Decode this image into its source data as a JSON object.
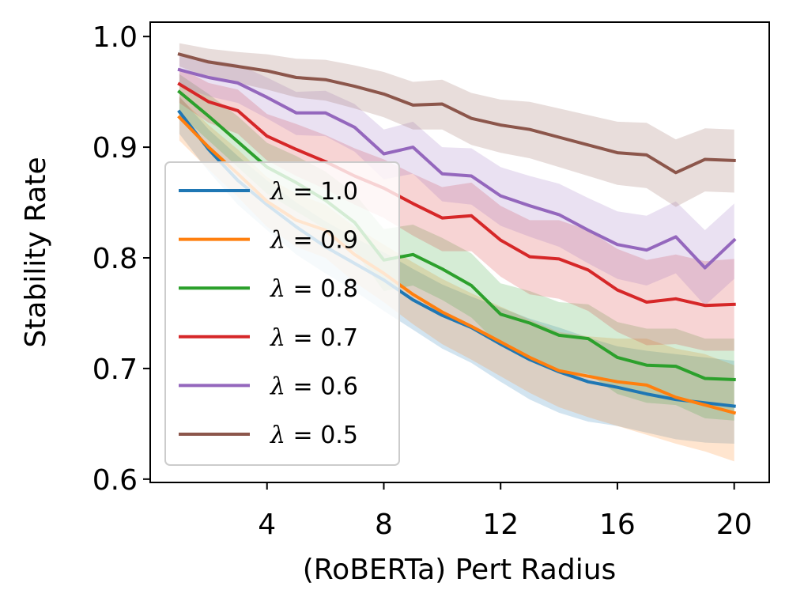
{
  "chart_data": {
    "type": "line",
    "title": "",
    "xlabel": "(RoBERTa) Pert Radius",
    "ylabel": "Stability Rate",
    "xlim": [
      0,
      21.2
    ],
    "ylim": [
      0.597,
      1.013
    ],
    "xticks": [
      4,
      8,
      12,
      16,
      20
    ],
    "yticks": [
      0.6,
      0.7,
      0.8,
      0.9,
      1.0
    ],
    "xtick_labels": [
      "4",
      "8",
      "12",
      "16",
      "20"
    ],
    "ytick_labels": [
      "0.6",
      "0.7",
      "0.8",
      "0.9",
      "1.0"
    ],
    "grid": false,
    "legend_position": "lower-left",
    "x": [
      1,
      2,
      3,
      4,
      5,
      6,
      7,
      8,
      9,
      10,
      11,
      12,
      13,
      14,
      15,
      16,
      17,
      18,
      19,
      20
    ],
    "series": [
      {
        "name": "λ = 1.0",
        "lambda_value": "1.0",
        "color": "#1f77b4",
        "values": [
          0.932,
          0.898,
          0.87,
          0.848,
          0.828,
          0.81,
          0.795,
          0.78,
          0.762,
          0.748,
          0.737,
          0.722,
          0.708,
          0.697,
          0.688,
          0.683,
          0.677,
          0.672,
          0.669,
          0.666
        ],
        "lower": [
          0.912,
          0.878,
          0.848,
          0.825,
          0.803,
          0.786,
          0.77,
          0.752,
          0.735,
          0.718,
          0.705,
          0.688,
          0.672,
          0.66,
          0.652,
          0.648,
          0.642,
          0.636,
          0.633,
          0.632
        ],
        "upper": [
          0.946,
          0.916,
          0.892,
          0.87,
          0.85,
          0.833,
          0.818,
          0.805,
          0.79,
          0.776,
          0.765,
          0.755,
          0.745,
          0.737,
          0.728,
          0.72,
          0.716,
          0.713,
          0.71,
          0.707
        ]
      },
      {
        "name": "λ = 0.9",
        "lambda_value": "0.9",
        "color": "#ff7f0e",
        "values": [
          0.927,
          0.9,
          0.876,
          0.851,
          0.834,
          0.825,
          0.803,
          0.786,
          0.767,
          0.751,
          0.738,
          0.724,
          0.71,
          0.698,
          0.693,
          0.688,
          0.685,
          0.674,
          0.667,
          0.66
        ],
        "lower": [
          0.906,
          0.88,
          0.855,
          0.828,
          0.81,
          0.8,
          0.778,
          0.76,
          0.74,
          0.722,
          0.708,
          0.693,
          0.678,
          0.665,
          0.656,
          0.648,
          0.64,
          0.632,
          0.625,
          0.616
        ],
        "upper": [
          0.945,
          0.92,
          0.898,
          0.873,
          0.858,
          0.848,
          0.828,
          0.812,
          0.796,
          0.781,
          0.768,
          0.756,
          0.744,
          0.733,
          0.729,
          0.727,
          0.727,
          0.718,
          0.713,
          0.703
        ]
      },
      {
        "name": "λ = 0.8",
        "lambda_value": "0.8",
        "color": "#2ca02c",
        "values": [
          0.95,
          0.928,
          0.905,
          0.882,
          0.868,
          0.852,
          0.832,
          0.798,
          0.803,
          0.79,
          0.775,
          0.749,
          0.741,
          0.73,
          0.727,
          0.71,
          0.703,
          0.702,
          0.691,
          0.69
        ],
        "lower": [
          0.93,
          0.906,
          0.882,
          0.858,
          0.842,
          0.826,
          0.806,
          0.77,
          0.775,
          0.762,
          0.746,
          0.72,
          0.711,
          0.699,
          0.695,
          0.677,
          0.669,
          0.667,
          0.655,
          0.653
        ],
        "upper": [
          0.966,
          0.948,
          0.928,
          0.904,
          0.892,
          0.878,
          0.858,
          0.826,
          0.83,
          0.818,
          0.804,
          0.777,
          0.77,
          0.76,
          0.758,
          0.742,
          0.736,
          0.736,
          0.727,
          0.727
        ]
      },
      {
        "name": "λ = 0.7",
        "lambda_value": "0.7",
        "color": "#d62728",
        "values": [
          0.957,
          0.941,
          0.933,
          0.91,
          0.898,
          0.887,
          0.874,
          0.863,
          0.849,
          0.836,
          0.838,
          0.816,
          0.801,
          0.799,
          0.789,
          0.771,
          0.76,
          0.763,
          0.757,
          0.758
        ],
        "lower": [
          0.94,
          0.922,
          0.912,
          0.888,
          0.874,
          0.862,
          0.848,
          0.836,
          0.82,
          0.806,
          0.806,
          0.783,
          0.767,
          0.763,
          0.752,
          0.733,
          0.721,
          0.722,
          0.716,
          0.716
        ],
        "upper": [
          0.972,
          0.958,
          0.952,
          0.93,
          0.921,
          0.911,
          0.899,
          0.889,
          0.876,
          0.864,
          0.868,
          0.847,
          0.834,
          0.834,
          0.825,
          0.808,
          0.798,
          0.803,
          0.797,
          0.799
        ]
      },
      {
        "name": "λ = 0.6",
        "lambda_value": "0.6",
        "color": "#9467bd",
        "values": [
          0.97,
          0.963,
          0.958,
          0.945,
          0.931,
          0.931,
          0.918,
          0.894,
          0.9,
          0.876,
          0.874,
          0.856,
          0.847,
          0.839,
          0.825,
          0.812,
          0.807,
          0.819,
          0.791,
          0.816
        ],
        "lower": [
          0.955,
          0.946,
          0.94,
          0.926,
          0.911,
          0.91,
          0.896,
          0.871,
          0.876,
          0.851,
          0.848,
          0.829,
          0.819,
          0.81,
          0.795,
          0.781,
          0.775,
          0.786,
          0.757,
          0.781
        ],
        "upper": [
          0.984,
          0.979,
          0.975,
          0.963,
          0.95,
          0.951,
          0.939,
          0.916,
          0.923,
          0.9,
          0.899,
          0.882,
          0.874,
          0.867,
          0.854,
          0.842,
          0.838,
          0.851,
          0.825,
          0.849
        ]
      },
      {
        "name": "λ = 0.5",
        "lambda_value": "0.5",
        "color": "#8c564b",
        "values": [
          0.984,
          0.977,
          0.973,
          0.969,
          0.963,
          0.961,
          0.955,
          0.948,
          0.938,
          0.939,
          0.926,
          0.92,
          0.916,
          0.909,
          0.902,
          0.895,
          0.893,
          0.877,
          0.889,
          0.888
        ],
        "lower": [
          0.973,
          0.963,
          0.958,
          0.952,
          0.945,
          0.942,
          0.935,
          0.927,
          0.916,
          0.916,
          0.902,
          0.895,
          0.89,
          0.882,
          0.874,
          0.866,
          0.863,
          0.846,
          0.86,
          0.859
        ],
        "upper": [
          0.994,
          0.989,
          0.986,
          0.984,
          0.98,
          0.979,
          0.974,
          0.968,
          0.959,
          0.961,
          0.949,
          0.943,
          0.941,
          0.935,
          0.929,
          0.923,
          0.922,
          0.907,
          0.917,
          0.916
        ]
      }
    ]
  }
}
